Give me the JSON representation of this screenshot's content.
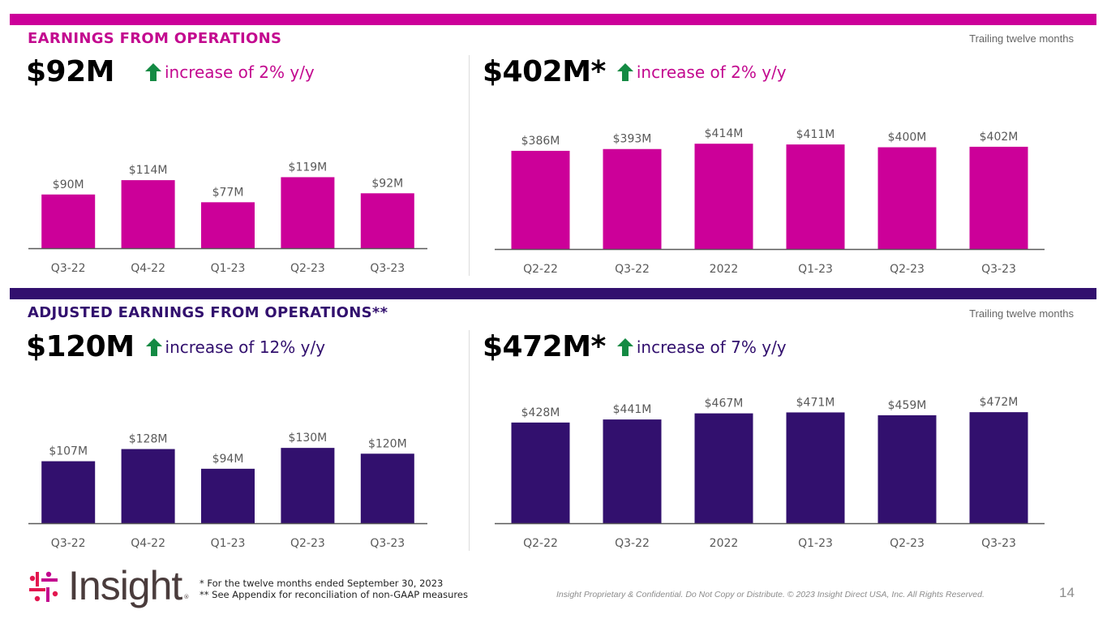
{
  "colors": {
    "magenta": "#cc0099",
    "purple": "#32106e",
    "up_arrow": "#138a43",
    "axis": "#595959"
  },
  "sections": [
    {
      "title": "EARNINGS FROM OPERATIONS",
      "ttm_label": "Trailing twelve months",
      "quarterly": {
        "value": "$92M",
        "delta": "increase of 2% y/y",
        "delta_icon": "up-arrow-icon"
      },
      "ttm": {
        "value": "$402M*",
        "delta": "increase of 2% y/y",
        "delta_icon": "up-arrow-icon"
      }
    },
    {
      "title": "ADJUSTED EARNINGS FROM OPERATIONS**",
      "ttm_label": "Trailing twelve months",
      "quarterly": {
        "value": "$120M",
        "delta": "increase of 12% y/y",
        "delta_icon": "up-arrow-icon"
      },
      "ttm": {
        "value": "$472M*",
        "delta": "increase of 7% y/y",
        "delta_icon": "up-arrow-icon"
      }
    }
  ],
  "chart_data": [
    {
      "type": "bar",
      "title": "Earnings from Operations - Quarterly",
      "categories": [
        "Q3-22",
        "Q4-22",
        "Q1-23",
        "Q2-23",
        "Q3-23"
      ],
      "values": [
        90,
        114,
        77,
        119,
        92
      ],
      "labels": [
        "$90M",
        "$114M",
        "$77M",
        "$119M",
        "$92M"
      ],
      "unit": "$M",
      "ylim": [
        0,
        125
      ],
      "color": "#cc0099",
      "grid": false
    },
    {
      "type": "bar",
      "title": "Earnings from Operations - Trailing twelve months",
      "categories": [
        "Q2-22",
        "Q3-22",
        "2022",
        "Q1-23",
        "Q2-23",
        "Q3-23"
      ],
      "values": [
        386,
        393,
        414,
        411,
        400,
        402
      ],
      "labels": [
        "$386M",
        "$393M",
        "$414M",
        "$411M",
        "$400M",
        "$402M"
      ],
      "unit": "$M",
      "ylim": [
        0,
        440
      ],
      "color": "#cc0099",
      "grid": false
    },
    {
      "type": "bar",
      "title": "Adjusted Earnings from Operations - Quarterly",
      "categories": [
        "Q3-22",
        "Q4-22",
        "Q1-23",
        "Q2-23",
        "Q3-23"
      ],
      "values": [
        107,
        128,
        94,
        130,
        120
      ],
      "labels": [
        "$107M",
        "$128M",
        "$94M",
        "$130M",
        "$120M"
      ],
      "unit": "$M",
      "ylim": [
        0,
        140
      ],
      "color": "#32106e",
      "grid": false
    },
    {
      "type": "bar",
      "title": "Adjusted Earnings from Operations - Trailing twelve months",
      "categories": [
        "Q2-22",
        "Q3-22",
        "2022",
        "Q1-23",
        "Q2-23",
        "Q3-23"
      ],
      "values": [
        428,
        441,
        467,
        471,
        459,
        472
      ],
      "labels": [
        "$428M",
        "$441M",
        "$467M",
        "$471M",
        "$459M",
        "$472M"
      ],
      "unit": "$M",
      "ylim": [
        0,
        500
      ],
      "color": "#32106e",
      "grid": false
    }
  ],
  "footer": {
    "logo_text": "Insight",
    "logo_reg": "®",
    "footnote_1": "* For the twelve months ended September 30, 2023",
    "footnote_2": "** See Appendix for reconciliation of non-GAAP measures",
    "confidential": "Insight Proprietary & Confidential. Do Not Copy or Distribute. © 2023 Insight Direct USA, Inc. All Rights Reserved.",
    "page_number": "14"
  }
}
